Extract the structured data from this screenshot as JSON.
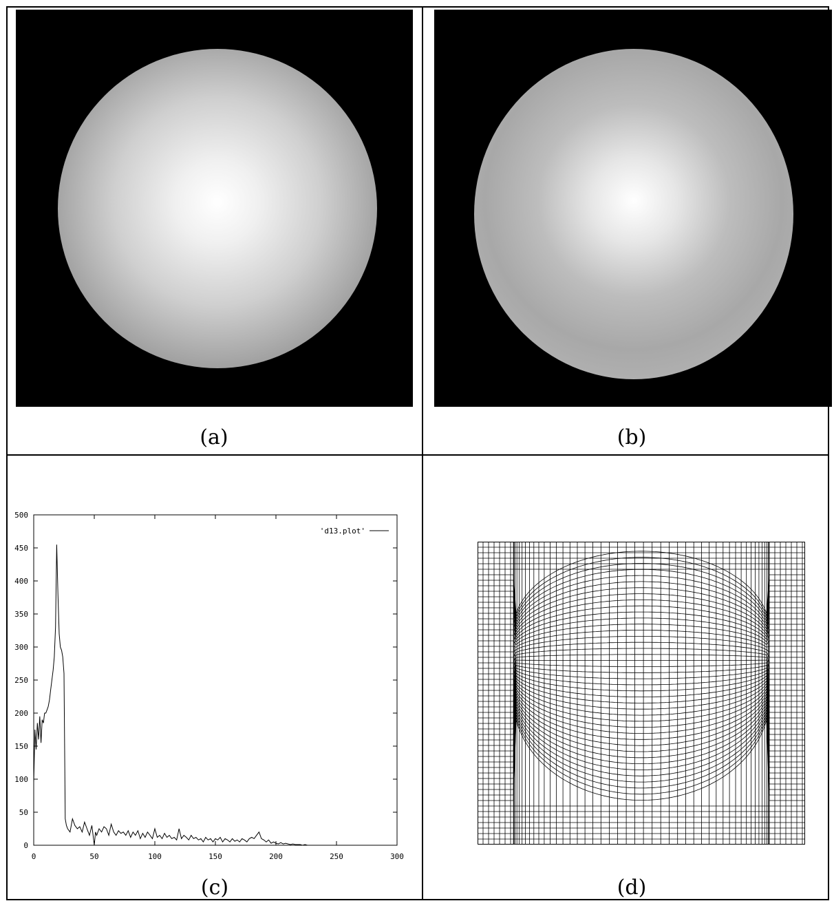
{
  "captions": {
    "a": "(a)",
    "b": "(b)",
    "c": "(c)",
    "d": "(d)"
  },
  "chart_data": {
    "type": "line",
    "title": "",
    "xlabel": "",
    "ylabel": "",
    "xlim": [
      0,
      300
    ],
    "ylim": [
      0,
      500
    ],
    "xticks": [
      0,
      50,
      100,
      150,
      200,
      250,
      300
    ],
    "yticks": [
      0,
      50,
      100,
      150,
      200,
      250,
      300,
      350,
      400,
      450,
      500
    ],
    "legend_position": "top-right",
    "grid": false,
    "series": [
      {
        "name": "'d13.plot'",
        "x": [
          0,
          1,
          2,
          3,
          4,
          5,
          6,
          7,
          8,
          9,
          10,
          11,
          12,
          13,
          14,
          15,
          16,
          17,
          18,
          19,
          20,
          21,
          22,
          23,
          24,
          25,
          26,
          27,
          28,
          30,
          32,
          34,
          36,
          38,
          40,
          42,
          44,
          46,
          48,
          50,
          51,
          52,
          54,
          56,
          58,
          60,
          62,
          64,
          66,
          68,
          70,
          72,
          74,
          76,
          78,
          80,
          82,
          84,
          86,
          88,
          90,
          92,
          94,
          96,
          98,
          100,
          102,
          104,
          106,
          108,
          110,
          112,
          114,
          116,
          118,
          120,
          122,
          124,
          126,
          128,
          130,
          132,
          134,
          136,
          138,
          140,
          142,
          144,
          146,
          148,
          150,
          152,
          154,
          156,
          158,
          160,
          162,
          164,
          166,
          168,
          170,
          172,
          174,
          176,
          178,
          180,
          182,
          184,
          186,
          188,
          190,
          192,
          194,
          196,
          198,
          200,
          202,
          204,
          206,
          208,
          210,
          212,
          214,
          216,
          218,
          220,
          222,
          224,
          226,
          230,
          240,
          250,
          260
        ],
        "y": [
          95,
          175,
          145,
          185,
          160,
          195,
          155,
          190,
          185,
          200,
          200,
          205,
          210,
          220,
          235,
          250,
          265,
          285,
          330,
          455,
          380,
          320,
          300,
          295,
          285,
          260,
          40,
          30,
          25,
          20,
          40,
          30,
          25,
          28,
          20,
          35,
          25,
          15,
          30,
          0,
          20,
          15,
          25,
          20,
          28,
          25,
          15,
          32,
          20,
          15,
          22,
          18,
          20,
          15,
          22,
          12,
          20,
          15,
          22,
          10,
          18,
          12,
          20,
          15,
          10,
          25,
          12,
          15,
          10,
          18,
          12,
          15,
          10,
          12,
          8,
          25,
          10,
          15,
          12,
          8,
          15,
          10,
          12,
          8,
          10,
          5,
          12,
          8,
          10,
          5,
          10,
          8,
          12,
          5,
          10,
          8,
          5,
          10,
          6,
          8,
          5,
          10,
          8,
          5,
          10,
          12,
          10,
          15,
          20,
          10,
          8,
          5,
          8,
          3,
          5,
          3,
          2,
          4,
          2,
          3,
          2,
          1,
          2,
          1,
          1,
          1,
          0,
          1,
          0,
          0,
          0,
          0,
          0
        ]
      }
    ]
  }
}
